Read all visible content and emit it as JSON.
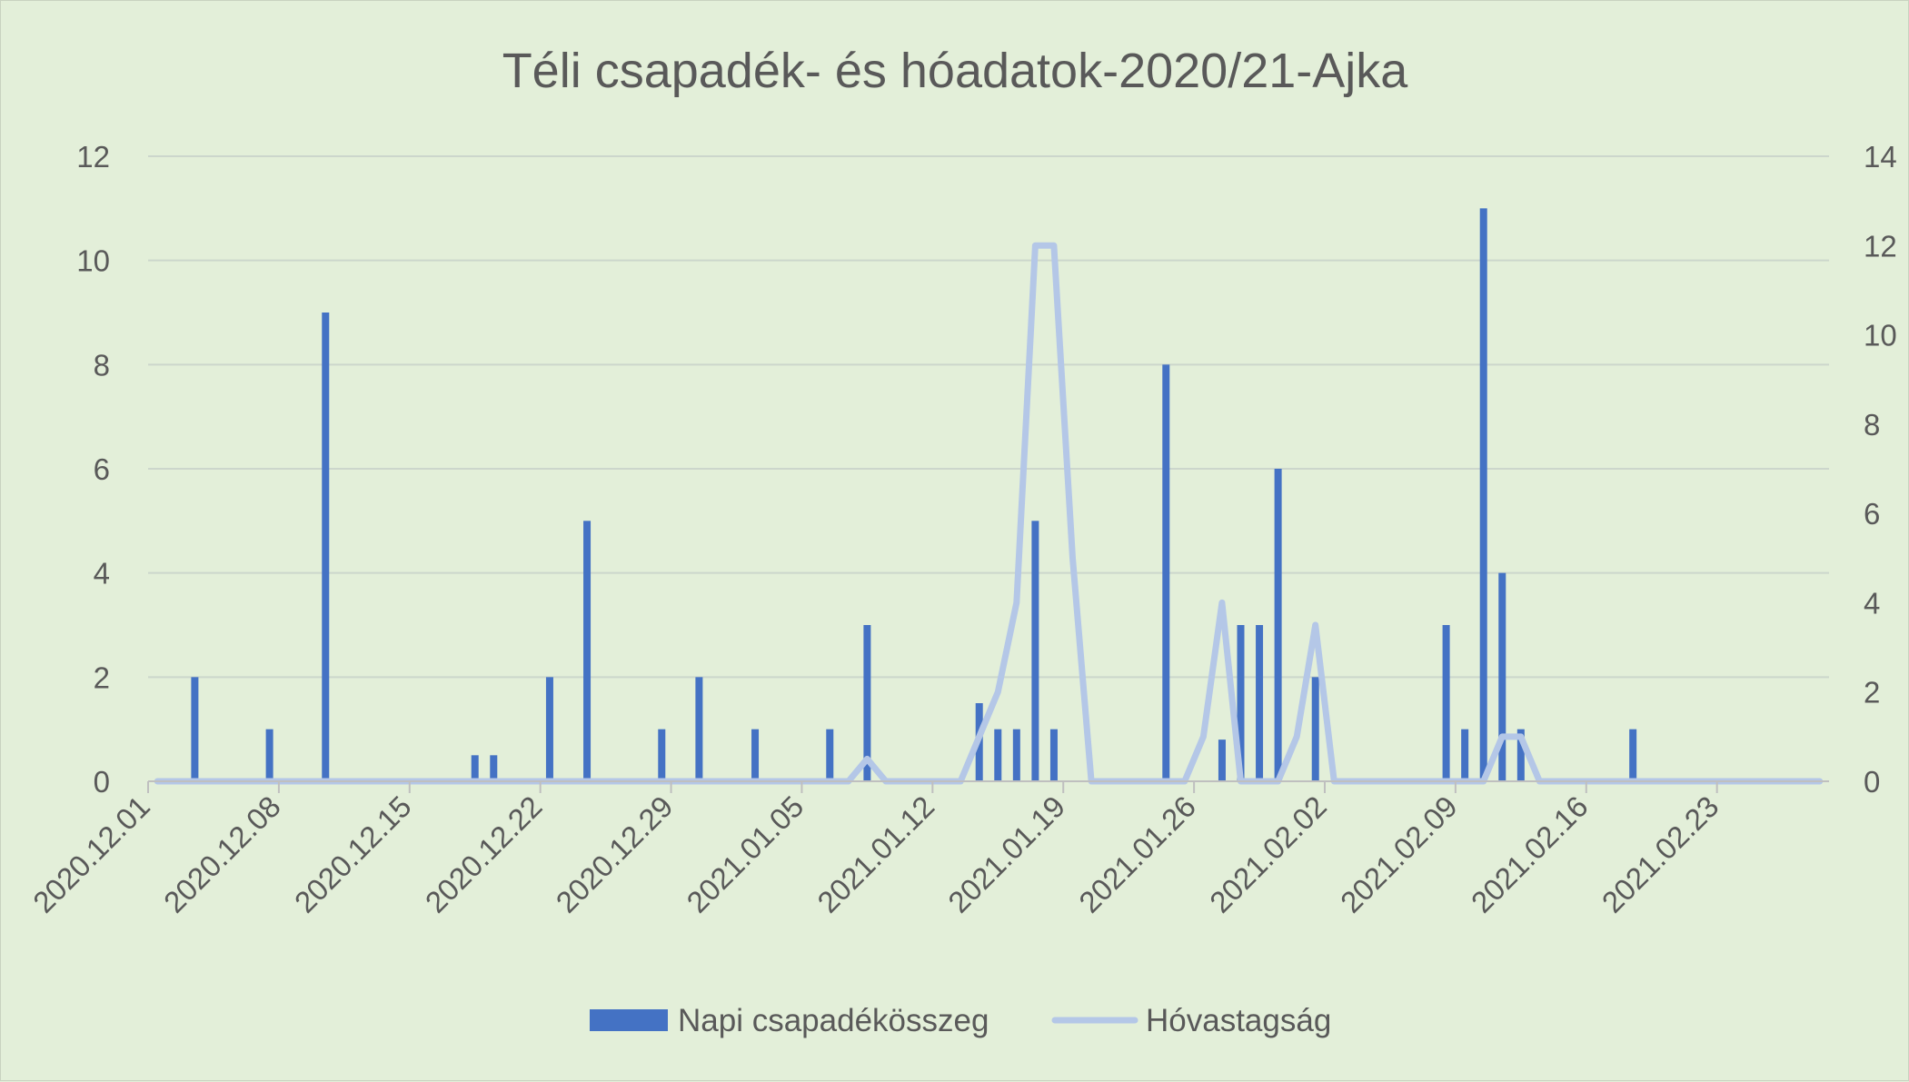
{
  "chart_data": {
    "type": "bar+line",
    "title": "Téli csapadék- és hóadatok-2020/21-Ajka",
    "x_tick_labels": [
      "2020.12.01",
      "2020.12.08",
      "2020.12.15",
      "2020.12.22",
      "2020.12.29",
      "2021.01.05",
      "2021.01.12",
      "2021.01.19",
      "2021.01.26",
      "2021.02.02",
      "2021.02.09",
      "2021.02.16",
      "2021.02.23"
    ],
    "y_left": {
      "min": 0,
      "max": 12,
      "ticks": [
        "0",
        "2",
        "4",
        "6",
        "8",
        "10",
        "12"
      ]
    },
    "y_right": {
      "min": 0,
      "max": 14,
      "ticks": [
        "0",
        "2",
        "4",
        "6",
        "8",
        "10",
        "12",
        "14"
      ]
    },
    "grid": true,
    "legend_position": "bottom",
    "bar_series": {
      "name": "Napi csapadékösszeg",
      "color": "#4472c4",
      "axis": "left",
      "points": [
        {
          "date": "2020.12.03",
          "value": 2
        },
        {
          "date": "2020.12.07",
          "value": 1
        },
        {
          "date": "2020.12.10",
          "value": 9
        },
        {
          "date": "2020.12.18",
          "value": 0.5
        },
        {
          "date": "2020.12.19",
          "value": 0.5
        },
        {
          "date": "2020.12.22",
          "value": 2
        },
        {
          "date": "2020.12.24",
          "value": 5
        },
        {
          "date": "2020.12.28",
          "value": 1
        },
        {
          "date": "2020.12.30",
          "value": 2
        },
        {
          "date": "2021.01.02",
          "value": 1
        },
        {
          "date": "2021.01.06",
          "value": 1
        },
        {
          "date": "2021.01.08",
          "value": 3
        },
        {
          "date": "2021.01.14",
          "value": 1.5
        },
        {
          "date": "2021.01.15",
          "value": 1
        },
        {
          "date": "2021.01.16",
          "value": 1
        },
        {
          "date": "2021.01.17",
          "value": 5
        },
        {
          "date": "2021.01.18",
          "value": 1
        },
        {
          "date": "2021.01.24",
          "value": 8
        },
        {
          "date": "2021.01.27",
          "value": 0.8
        },
        {
          "date": "2021.01.28",
          "value": 3
        },
        {
          "date": "2021.01.29",
          "value": 3
        },
        {
          "date": "2021.01.30",
          "value": 6
        },
        {
          "date": "2021.02.01",
          "value": 2
        },
        {
          "date": "2021.02.08",
          "value": 3
        },
        {
          "date": "2021.02.09",
          "value": 1
        },
        {
          "date": "2021.02.10",
          "value": 11
        },
        {
          "date": "2021.02.11",
          "value": 4
        },
        {
          "date": "2021.02.12",
          "value": 1
        },
        {
          "date": "2021.02.18",
          "value": 1
        }
      ]
    },
    "line_series": {
      "name": "Hóvastagság",
      "color": "#b4c7e7",
      "axis": "right",
      "points": [
        {
          "date": "2020.12.01",
          "value": 0
        },
        {
          "date": "2021.01.07",
          "value": 0
        },
        {
          "date": "2021.01.08",
          "value": 0.5
        },
        {
          "date": "2021.01.09",
          "value": 0
        },
        {
          "date": "2021.01.13",
          "value": 0
        },
        {
          "date": "2021.01.14",
          "value": 1
        },
        {
          "date": "2021.01.15",
          "value": 2
        },
        {
          "date": "2021.01.16",
          "value": 4
        },
        {
          "date": "2021.01.17",
          "value": 12
        },
        {
          "date": "2021.01.18",
          "value": 12
        },
        {
          "date": "2021.01.19",
          "value": 5
        },
        {
          "date": "2021.01.20",
          "value": 0
        },
        {
          "date": "2021.01.25",
          "value": 0
        },
        {
          "date": "2021.01.26",
          "value": 1
        },
        {
          "date": "2021.01.27",
          "value": 4
        },
        {
          "date": "2021.01.28",
          "value": 0
        },
        {
          "date": "2021.01.30",
          "value": 0
        },
        {
          "date": "2021.01.31",
          "value": 1
        },
        {
          "date": "2021.02.01",
          "value": 3.5
        },
        {
          "date": "2021.02.02",
          "value": 0
        },
        {
          "date": "2021.02.10",
          "value": 0
        },
        {
          "date": "2021.02.11",
          "value": 1
        },
        {
          "date": "2021.02.12",
          "value": 1
        },
        {
          "date": "2021.02.13",
          "value": 0
        },
        {
          "date": "2021.02.28",
          "value": 0
        }
      ]
    }
  }
}
